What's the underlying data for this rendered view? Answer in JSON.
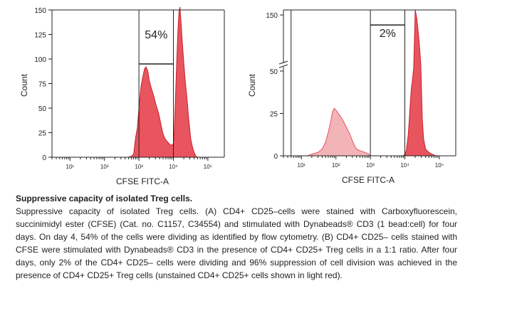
{
  "chart_data": [
    {
      "type": "area",
      "panel": "A",
      "xlabel": "CFSE FITC-A",
      "ylabel": "Count",
      "x_scale": "log",
      "xlim": [
        3,
        300000
      ],
      "ylim": [
        0,
        150
      ],
      "y_ticks": [
        0,
        25,
        50,
        75,
        100,
        125,
        150
      ],
      "x_ticks": [
        {
          "value": 10,
          "label": "10¹"
        },
        {
          "value": 100,
          "label": "10²"
        },
        {
          "value": 1000,
          "label": "10³"
        },
        {
          "value": 10000,
          "label": "10⁴"
        },
        {
          "value": 100000,
          "label": "10⁵"
        }
      ],
      "gate": {
        "x_range": [
          1000,
          10000
        ],
        "y_top": 150,
        "y_bottom": 95
      },
      "gate_label": "54%",
      "series": [
        {
          "fill": "#e8555e",
          "points": [
            [
              3,
              0
            ],
            [
              500,
              0
            ],
            [
              600,
              1
            ],
            [
              700,
              3
            ],
            [
              750,
              12
            ],
            [
              800,
              20
            ],
            [
              900,
              30
            ],
            [
              1000,
              50
            ],
            [
              1150,
              72
            ],
            [
              1300,
              82
            ],
            [
              1450,
              90
            ],
            [
              1600,
              92
            ],
            [
              1800,
              88
            ],
            [
              2000,
              78
            ],
            [
              2300,
              70
            ],
            [
              2700,
              62
            ],
            [
              3200,
              52
            ],
            [
              3700,
              45
            ],
            [
              4200,
              36
            ],
            [
              4800,
              26
            ],
            [
              5500,
              20
            ],
            [
              6500,
              16
            ],
            [
              8000,
              13
            ],
            [
              9000,
              12
            ],
            [
              10000,
              14
            ],
            [
              10500,
              24
            ],
            [
              11500,
              60
            ],
            [
              12500,
              98
            ],
            [
              13500,
              128
            ],
            [
              14500,
              148
            ],
            [
              15500,
              153
            ],
            [
              16500,
              140
            ],
            [
              18000,
              118
            ],
            [
              20000,
              96
            ],
            [
              22000,
              78
            ],
            [
              25000,
              58
            ],
            [
              28000,
              38
            ],
            [
              32000,
              18
            ],
            [
              36000,
              10
            ],
            [
              40000,
              5
            ],
            [
              45000,
              1
            ],
            [
              50000,
              0
            ],
            [
              300000,
              0
            ]
          ]
        }
      ]
    },
    {
      "type": "area",
      "panel": "B",
      "xlabel": "CFSE FITC-A",
      "ylabel": "Count",
      "x_scale": "log",
      "xlim": [
        3,
        300000
      ],
      "ylim": [
        0,
        160
      ],
      "y_ticks": [
        0,
        25,
        50,
        150
      ],
      "x_ticks": [
        {
          "value": 10,
          "label": "10¹"
        },
        {
          "value": 100,
          "label": "10²"
        },
        {
          "value": 1000,
          "label": "10³"
        },
        {
          "value": 10000,
          "label": "10⁴"
        },
        {
          "value": 100000,
          "label": "10⁵"
        }
      ],
      "axis_break": {
        "from": 55,
        "to": 140,
        "y_mid": 75
      },
      "gate": {
        "x_range": [
          1000,
          10000
        ],
        "y_top": 160,
        "y_bottom": 130
      },
      "gate_label": "2%",
      "series": [
        {
          "fill": "#f3b4b8",
          "points": [
            [
              3,
              0
            ],
            [
              15,
              0
            ],
            [
              20,
              1
            ],
            [
              30,
              2
            ],
            [
              40,
              4
            ],
            [
              50,
              8
            ],
            [
              60,
              14
            ],
            [
              70,
              20
            ],
            [
              80,
              26
            ],
            [
              90,
              28
            ],
            [
              100,
              27
            ],
            [
              150,
              22
            ],
            [
              200,
              17
            ],
            [
              250,
              13
            ],
            [
              300,
              9
            ],
            [
              350,
              6
            ],
            [
              400,
              4
            ],
            [
              500,
              3
            ],
            [
              700,
              2
            ],
            [
              900,
              1
            ],
            [
              1000,
              0
            ],
            [
              300000,
              0
            ]
          ]
        },
        {
          "fill": "#e8555e",
          "points": [
            [
              3,
              0
            ],
            [
              9000,
              0
            ],
            [
              10000,
              1
            ],
            [
              11000,
              3
            ],
            [
              11500,
              6
            ],
            [
              12500,
              12
            ],
            [
              13500,
              22
            ],
            [
              14500,
              32
            ],
            [
              15500,
              40
            ],
            [
              16500,
              44
            ],
            [
              18000,
              52
            ],
            [
              20000,
              160
            ],
            [
              22000,
              145
            ],
            [
              24000,
              122
            ],
            [
              26000,
              96
            ],
            [
              29000,
              54
            ],
            [
              32000,
              22
            ],
            [
              35000,
              10
            ],
            [
              40000,
              4
            ],
            [
              50000,
              2
            ],
            [
              60000,
              1
            ],
            [
              80000,
              0
            ],
            [
              300000,
              0
            ]
          ]
        }
      ]
    }
  ],
  "caption": {
    "title": "Suppressive capacity of isolated Treg cells.",
    "body": "Suppressive capacity of isolated Treg cells. (A) CD4+ CD25–cells were stained with Carboxyfluorescein, succinimidyl ester (CFSE) (Cat. no. C1157, C34554) and stimulated with Dynabeads® CD3 (1 bead:cell) for four days. On day 4, 54% of the cells were dividing as identified by flow cytometry. (B) CD4+ CD25– cells stained with CFSE were stimulated with Dynabeads® CD3 in the presence of CD4+ CD25+ Treg cells in a 1:1 ratio. After four days, only 2% of the CD4+ CD25– cells were dividing and 96% suppression of cell division was achieved in the presence of CD4+ CD25+ Treg cells (unstained CD4+ CD25+ cells shown in light red)."
  }
}
